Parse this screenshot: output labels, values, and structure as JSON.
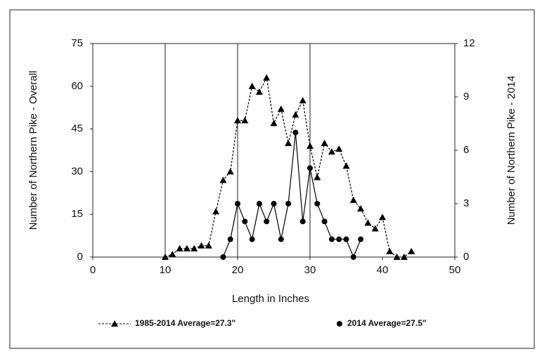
{
  "chart_data": {
    "type": "line",
    "xlabel": "Length in Inches",
    "ylabel": "Number of Northern Pike - Overall",
    "y2label": "Number of Northern Pike - 2014",
    "xlim": [
      0,
      50
    ],
    "xticks": [
      0,
      10,
      20,
      30,
      40,
      50
    ],
    "ylim": [
      0,
      75
    ],
    "yticks": [
      0,
      15,
      30,
      45,
      60,
      75
    ],
    "y2lim": [
      0,
      12
    ],
    "y2ticks": [
      0,
      3,
      6,
      9,
      12
    ],
    "x_grid_lines": [
      10,
      20,
      30
    ],
    "series": [
      {
        "name": "1985-2014 Average=27.3\"",
        "color": "#000000",
        "marker": "triangle",
        "dashed": true,
        "x": [
          10,
          11,
          12,
          13,
          14,
          15,
          16,
          17,
          18,
          19,
          20,
          21,
          22,
          23,
          24,
          25,
          26,
          27,
          28,
          29,
          30,
          31,
          32,
          33,
          34,
          35,
          36,
          37,
          38,
          39,
          40,
          41,
          42,
          43,
          44
        ],
        "values": [
          0,
          1,
          3,
          3,
          3,
          4,
          4,
          16,
          27,
          30,
          48,
          48,
          60,
          58,
          63,
          47,
          52,
          40,
          50,
          55,
          39,
          28,
          40,
          37,
          38,
          32,
          20,
          17,
          12,
          10,
          14,
          2,
          0,
          0,
          2
        ]
      },
      {
        "name": "2014 Average=27.5\"",
        "color": "#000000",
        "marker": "circle",
        "dashed": false,
        "axis": "y2",
        "x": [
          18,
          19,
          20,
          21,
          22,
          23,
          24,
          25,
          26,
          27,
          28,
          29,
          30,
          31,
          32,
          33,
          34,
          35,
          36,
          37
        ],
        "values": [
          0,
          1,
          3,
          2,
          1,
          3,
          2,
          3,
          1,
          3,
          7,
          2,
          5,
          3,
          2,
          1,
          1,
          1,
          0,
          1
        ]
      }
    ]
  }
}
